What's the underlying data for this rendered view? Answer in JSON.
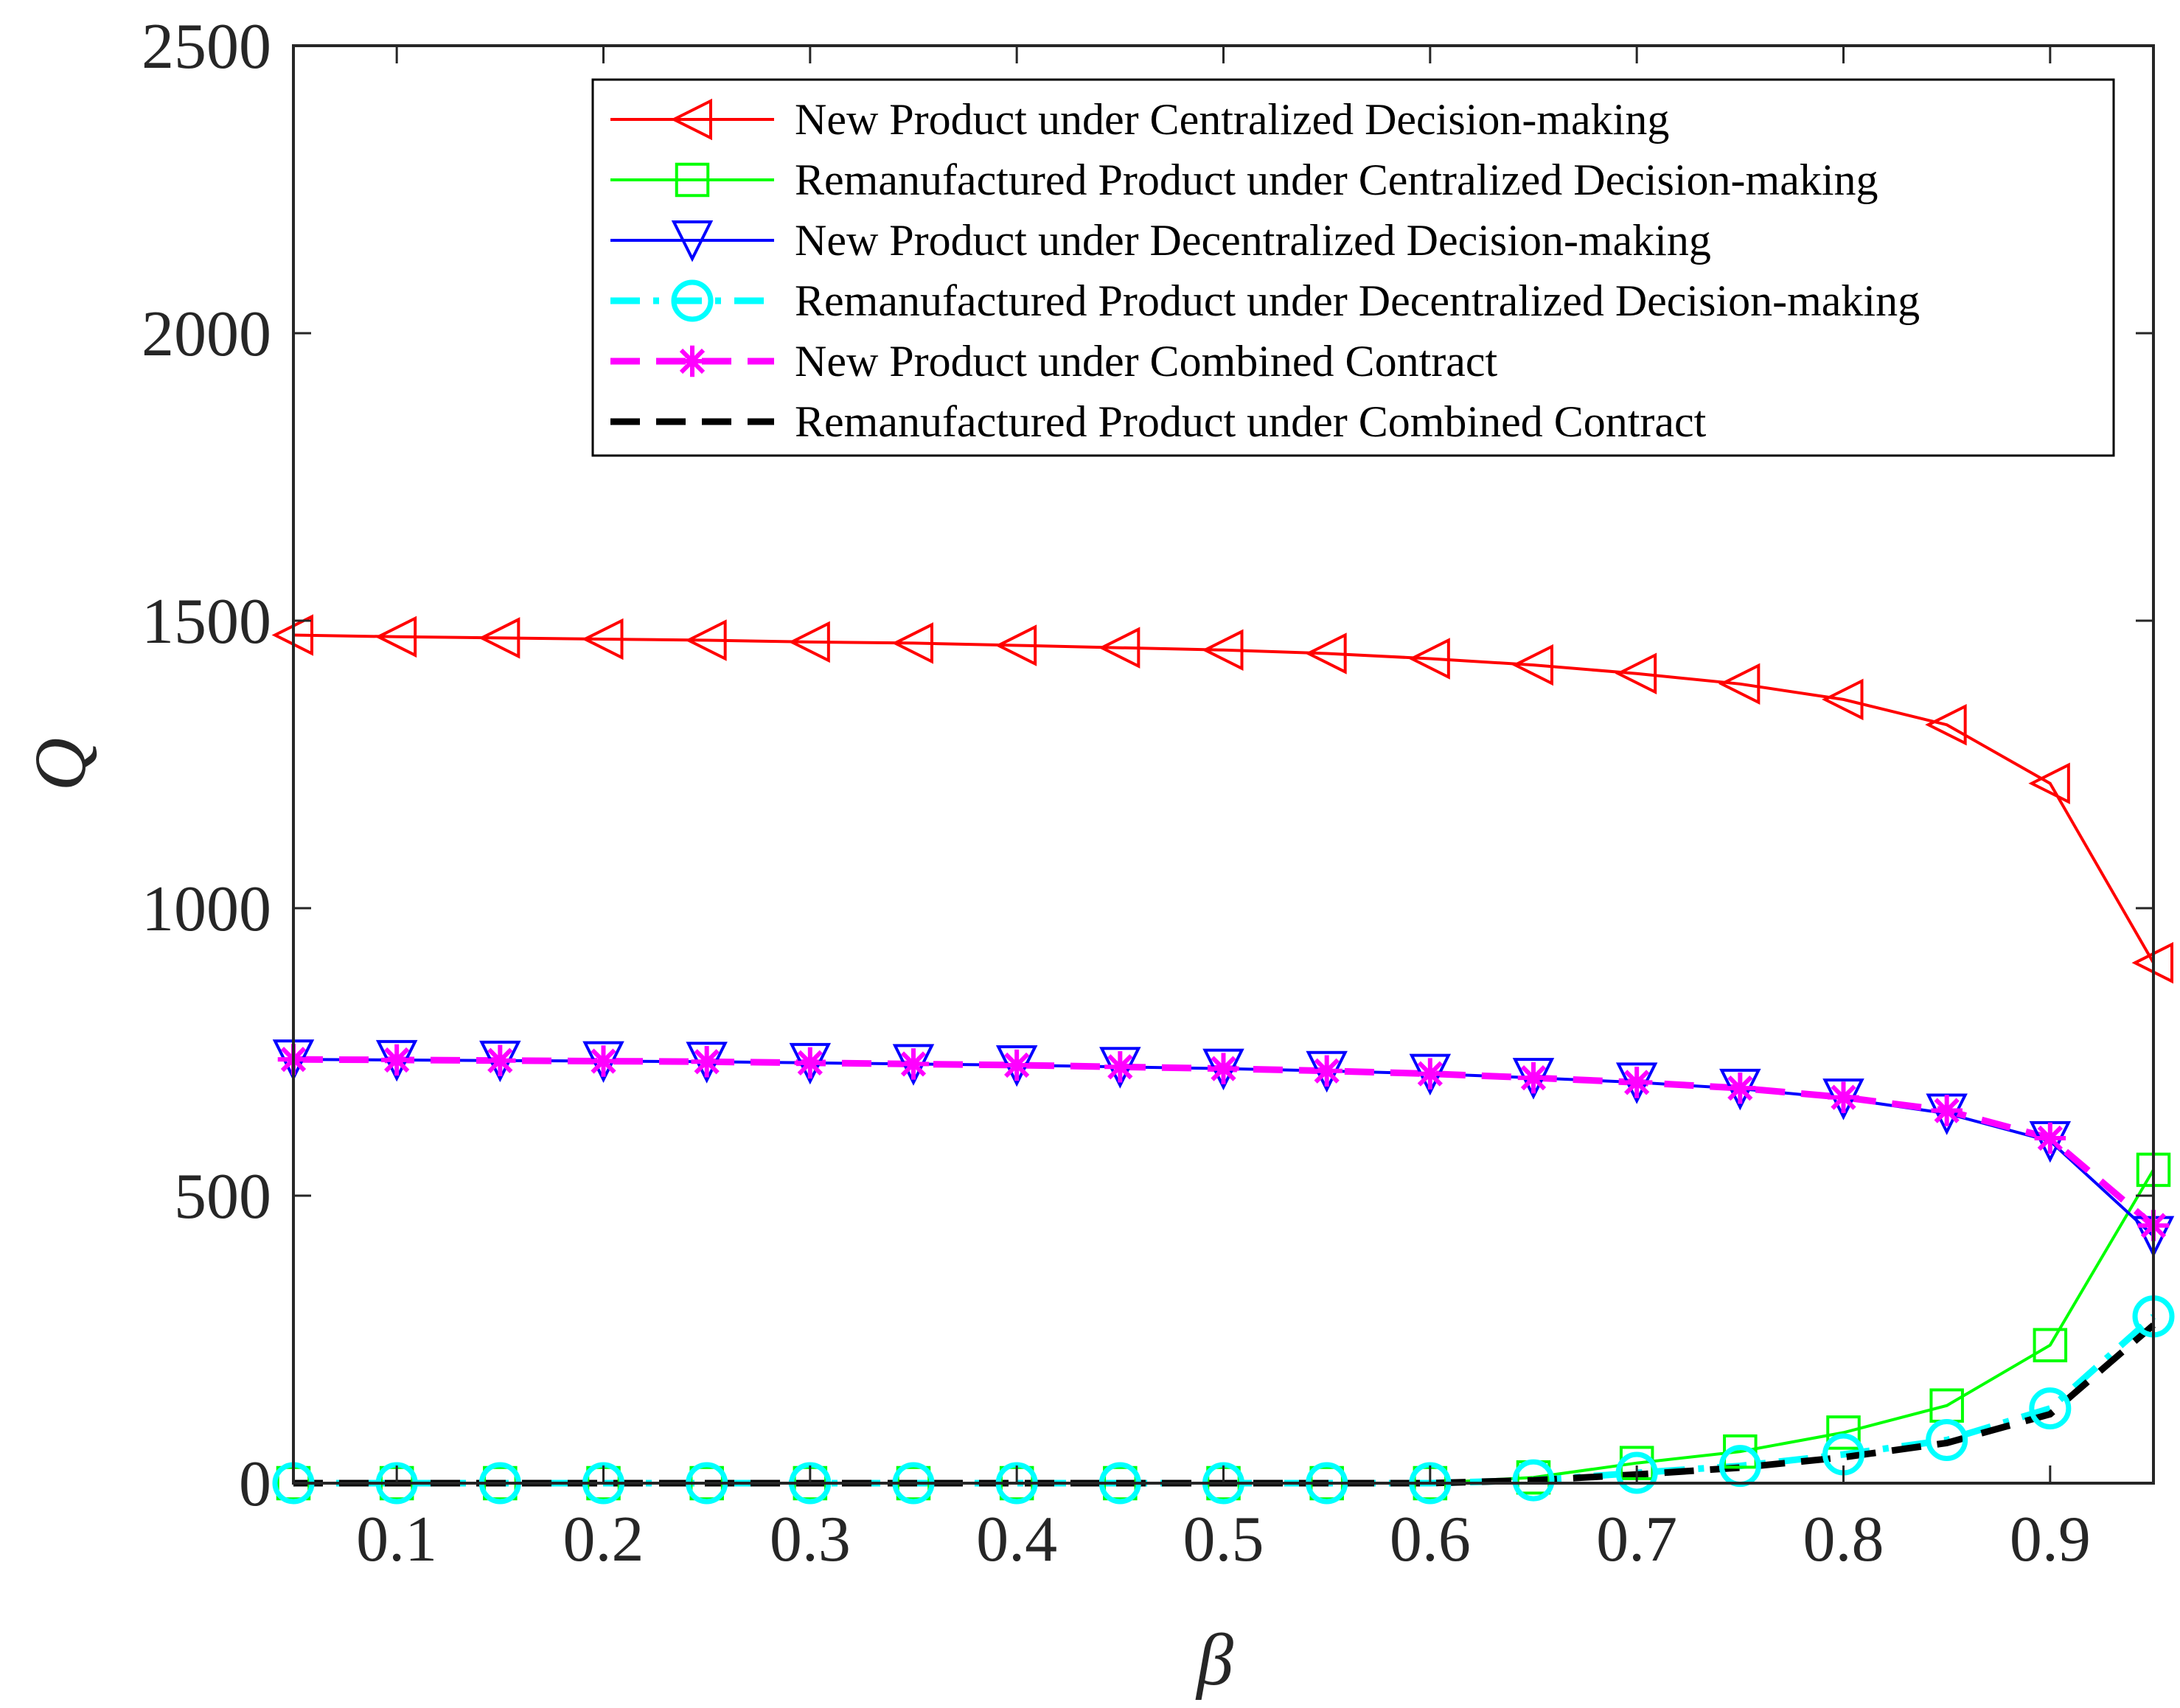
{
  "chart_data": {
    "type": "line",
    "title": "",
    "xlabel": "β",
    "ylabel": "Q",
    "xlim": [
      0.05,
      0.95
    ],
    "ylim": [
      0,
      2500
    ],
    "xticks": [
      0.1,
      0.2,
      0.3,
      0.4,
      0.5,
      0.6,
      0.7,
      0.8,
      0.9
    ],
    "xtick_labels": [
      "0.1",
      "0.2",
      "0.3",
      "0.4",
      "0.5",
      "0.6",
      "0.7",
      "0.8",
      "0.9"
    ],
    "yticks": [
      0,
      500,
      1000,
      1500,
      2000,
      2500
    ],
    "ytick_labels": [
      "0",
      "500",
      "1000",
      "1500",
      "2000",
      "2500"
    ],
    "grid": false,
    "legend_position": "top-right",
    "x": [
      0.05,
      0.1,
      0.15,
      0.2,
      0.25,
      0.3,
      0.35,
      0.4,
      0.45,
      0.5,
      0.55,
      0.6,
      0.65,
      0.7,
      0.75,
      0.8,
      0.85,
      0.9,
      0.95
    ],
    "series": [
      {
        "name": "New Product under Centralized Decision-making",
        "color": "#ff0000",
        "line": "solid",
        "marker": "triangle-left",
        "values": [
          1475,
          1472,
          1470,
          1468,
          1466,
          1463,
          1461,
          1457,
          1453,
          1449,
          1443,
          1434,
          1423,
          1408,
          1390,
          1363,
          1319,
          1217,
          905
        ]
      },
      {
        "name": "Remanufactured Product under Centralized Decision-making",
        "color": "#00ff00",
        "line": "solid",
        "marker": "square",
        "values": [
          0,
          0,
          0,
          0,
          0,
          0,
          0,
          0,
          0,
          0,
          0,
          0,
          10,
          35,
          55,
          88,
          135,
          240,
          545
        ]
      },
      {
        "name": "New Product under Decentralized Decision-making",
        "color": "#0000ff",
        "line": "solid",
        "marker": "triangle-down",
        "values": [
          737,
          736,
          735,
          734,
          733,
          731,
          729,
          727,
          724,
          721,
          717,
          712,
          705,
          697,
          686,
          669,
          643,
          595,
          430
        ]
      },
      {
        "name": "Remanufactured Product under Decentralized Decision-making",
        "color": "#00ffff",
        "line": "dashdot",
        "marker": "circle",
        "values": [
          0,
          0,
          0,
          0,
          0,
          0,
          0,
          0,
          0,
          0,
          0,
          0,
          5,
          18,
          30,
          50,
          75,
          130,
          290
        ]
      },
      {
        "name": "New Product under Combined Contract",
        "color": "#ff00ff",
        "line": "dashed",
        "marker": "asterisk",
        "values": [
          737,
          736,
          735,
          734,
          733,
          731,
          729,
          727,
          724,
          721,
          717,
          712,
          705,
          697,
          687,
          671,
          648,
          600,
          448
        ]
      },
      {
        "name": "Remanufactured Product under Combined Contract",
        "color": "#000000",
        "line": "dashed",
        "marker": "none",
        "values": [
          0,
          0,
          0,
          0,
          0,
          0,
          0,
          0,
          0,
          0,
          0,
          0,
          5,
          15,
          27,
          45,
          70,
          120,
          275
        ]
      }
    ]
  }
}
